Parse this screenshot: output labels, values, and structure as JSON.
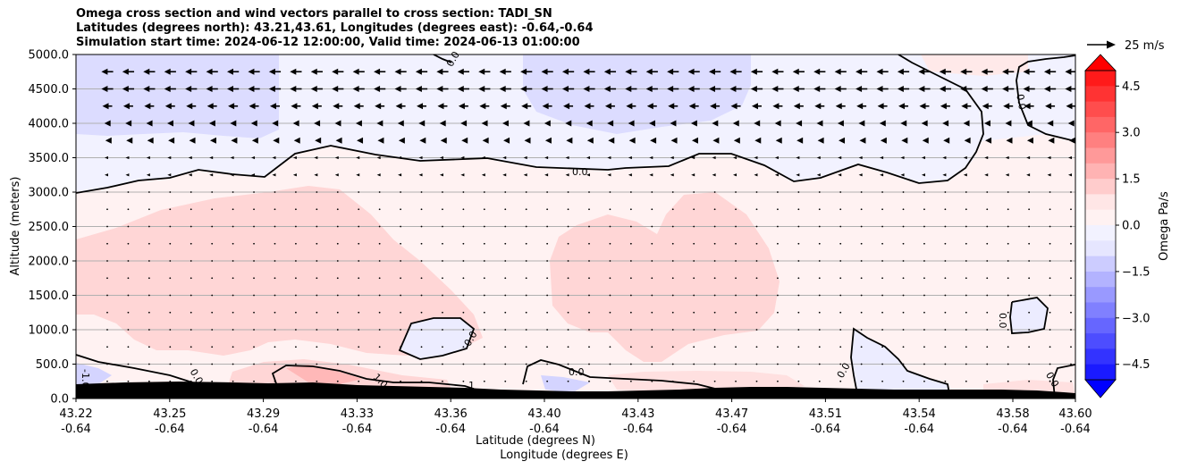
{
  "chart_data": {
    "type": "heatmap",
    "title": [
      "Omega cross section and wind vectors parallel to cross section: TADI_SN",
      "Latitudes (degrees north): 43.21,43.61, Longitudes (degrees east): -0.64,-0.64",
      "Simulation start time: 2024-06-12 12:00:00, Valid time: 2024-06-13 01:00:00"
    ],
    "ylabel": "Altitude (meters)",
    "xlabel_lines": [
      "Latitude (degrees N)",
      "Longitude (degrees E)"
    ],
    "ylim": [
      0,
      5000
    ],
    "y_ticks": [
      "0.0",
      "500.0",
      "1000.0",
      "1500.0",
      "2000.0",
      "2500.0",
      "3000.0",
      "3500.0",
      "4000.0",
      "4500.0",
      "5000.0"
    ],
    "x_ticks": [
      {
        "lat": "43.22",
        "lon": "-0.64"
      },
      {
        "lat": "43.25",
        "lon": "-0.64"
      },
      {
        "lat": "43.29",
        "lon": "-0.64"
      },
      {
        "lat": "43.33",
        "lon": "-0.64"
      },
      {
        "lat": "43.36",
        "lon": "-0.64"
      },
      {
        "lat": "43.40",
        "lon": "-0.64"
      },
      {
        "lat": "43.43",
        "lon": "-0.64"
      },
      {
        "lat": "43.47",
        "lon": "-0.64"
      },
      {
        "lat": "43.51",
        "lon": "-0.64"
      },
      {
        "lat": "43.54",
        "lon": "-0.64"
      },
      {
        "lat": "43.58",
        "lon": "-0.64"
      },
      {
        "lat": "43.60",
        "lon": "-0.64"
      }
    ],
    "grid": "horizontal",
    "colorbar": {
      "label": "Omega Pa/s",
      "range": [
        -5,
        5
      ],
      "ticks": [
        "4.5",
        "3.0",
        "1.5",
        "0.0",
        "−1.5",
        "−3.0",
        "−4.5"
      ],
      "colors_top_to_bottom": [
        "#ff1a1a",
        "#ff3333",
        "#ff4d4d",
        "#ff6666",
        "#ff8080",
        "#ff9999",
        "#ffb3b3",
        "#ffcccc",
        "#ffe6e6",
        "#fff2f2",
        "#f2f2ff",
        "#e6e6ff",
        "#ccccff",
        "#b3b3ff",
        "#9999ff",
        "#8080ff",
        "#6666ff",
        "#4d4dff",
        "#3333ff",
        "#1a1aff"
      ]
    },
    "vector_key": {
      "label": "25 m/s",
      "speed": 25
    },
    "contour_labels": [
      "0.0",
      "0.0",
      "0.0",
      "0.0",
      "0.0",
      "0.0",
      "0.0",
      "0.0",
      "0.0",
      "-1.0",
      "1.0",
      "1"
    ],
    "wind_u_by_altitude": [
      {
        "alt": 4750,
        "u": -6
      },
      {
        "alt": 4500,
        "u": -6
      },
      {
        "alt": 4250,
        "u": -5
      },
      {
        "alt": 4000,
        "u": -3
      },
      {
        "alt": 3750,
        "u": -2
      },
      {
        "alt": 3500,
        "u": -1
      },
      {
        "alt": 3250,
        "u": -0.5
      }
    ]
  }
}
